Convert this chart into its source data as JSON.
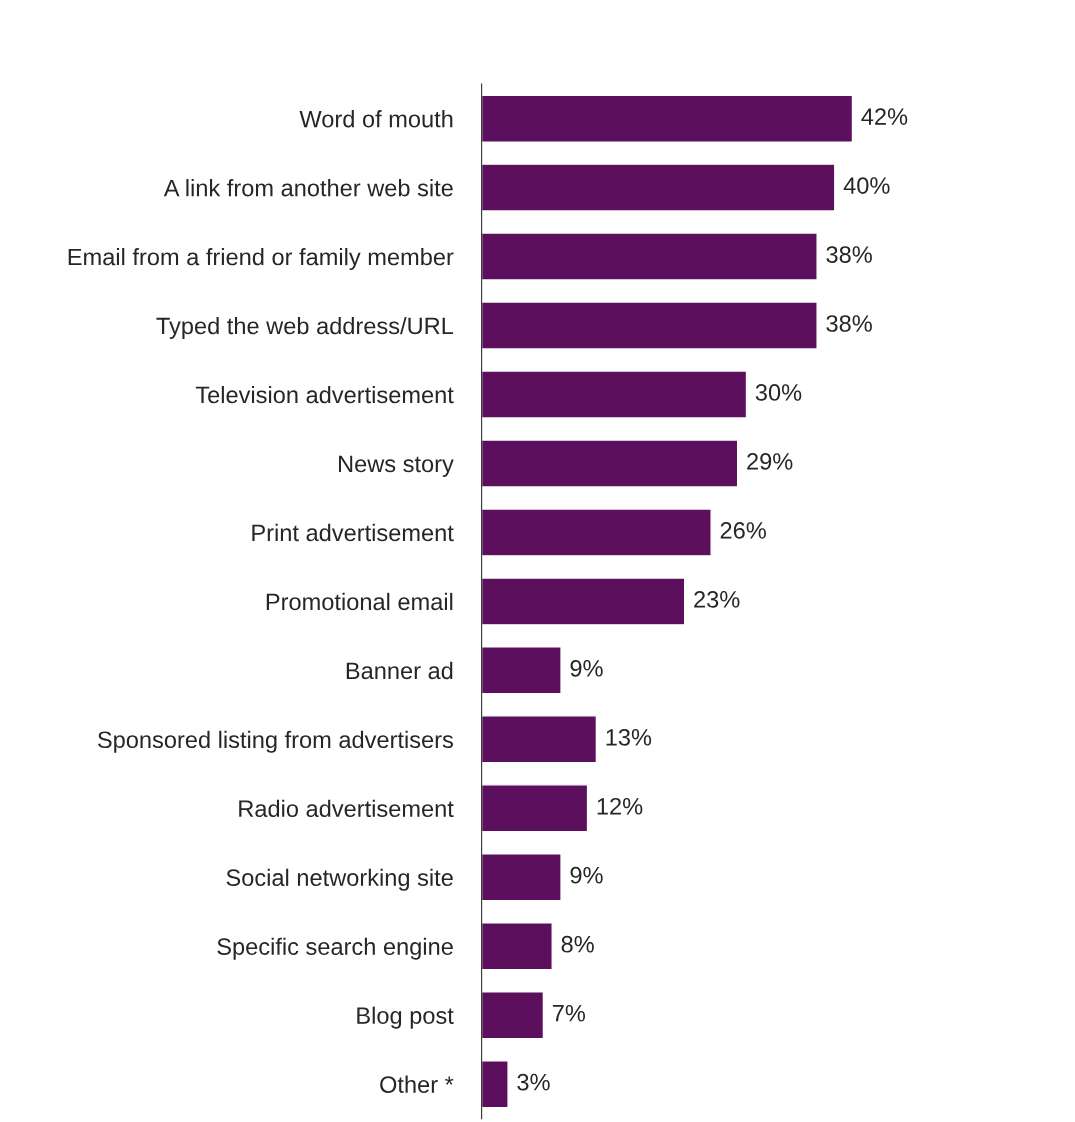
{
  "chart_data": {
    "type": "bar",
    "orientation": "horizontal",
    "color": "#5c0f5c",
    "value_labels": [
      "42%",
      "40%",
      "38%",
      "38%",
      "30%",
      "29%",
      "26%",
      "23%",
      "9%",
      "13%",
      "12%",
      "9%",
      "8%",
      "7%",
      "3%"
    ],
    "grid": false,
    "legend": false,
    "tick_labels": "y",
    "categories": [
      "Word of mouth",
      "A link from another web site",
      "Email from a friend or family member",
      "Typed the web address/URL",
      "Television advertisement",
      "News story",
      "Print advertisement",
      "Promotional email",
      "Banner ad",
      "Sponsored listing from advertisers",
      "Radio advertisement",
      "Social networking site",
      "Specific search engine",
      "Blog post",
      "Other *"
    ],
    "values": [
      42,
      40,
      38,
      38,
      30,
      29,
      26,
      23,
      9,
      13,
      12,
      9,
      8,
      7,
      3
    ]
  }
}
